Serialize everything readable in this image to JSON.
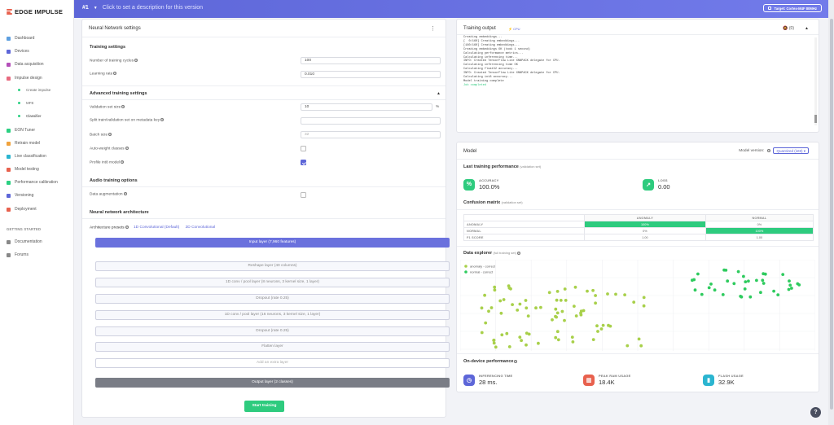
{
  "app": {
    "name": "EDGE IMPULSE"
  },
  "sidebar": {
    "items": [
      {
        "label": "Dashboard",
        "icon": "monitor-icon",
        "color": "#5d9fe0"
      },
      {
        "label": "Devices",
        "icon": "device-icon",
        "color": "#5d66d8"
      },
      {
        "label": "Data acquisition",
        "icon": "database-icon",
        "color": "#b44fb9"
      },
      {
        "label": "Impulse design",
        "icon": "impulse-icon",
        "color": "#e86a7f"
      }
    ],
    "sub": [
      {
        "label": "Create impulse"
      },
      {
        "label": "MFE"
      },
      {
        "label": "Classifier"
      }
    ],
    "items2": [
      {
        "label": "EON Tuner",
        "icon": "tuner-icon",
        "color": "#2bd082"
      },
      {
        "label": "Retrain model",
        "icon": "retrain-icon",
        "color": "#f0a23c"
      },
      {
        "label": "Live classification",
        "icon": "live-icon",
        "color": "#2bb5d0"
      },
      {
        "label": "Model testing",
        "icon": "test-icon",
        "color": "#e8614e"
      },
      {
        "label": "Performance calibration",
        "icon": "calibration-icon",
        "color": "#2bd082"
      },
      {
        "label": "Versioning",
        "icon": "versioning-icon",
        "color": "#5d66d8"
      },
      {
        "label": "Deployment",
        "icon": "deploy-icon",
        "color": "#e8614e"
      }
    ],
    "getting_started": "GETTING STARTED",
    "gs_items": [
      {
        "label": "Documentation",
        "icon": "book-icon"
      },
      {
        "label": "Forums",
        "icon": "forum-icon"
      }
    ]
  },
  "topbar": {
    "version": "#1",
    "description": "Click to set a description for this version",
    "target": "Target: Cortex-M4F 80MHz"
  },
  "nn": {
    "title": "Neural Network settings",
    "training_settings": "Training settings",
    "cycles_label": "Number of training cycles",
    "cycles": "100",
    "lr_label": "Learning rate",
    "lr": "0.010",
    "advanced": "Advanced training settings",
    "val_label": "Validation set size",
    "val": "10",
    "val_unit": "%",
    "split_label": "Split train/validation set on metadata key",
    "batch_label": "Batch size",
    "batch": "32",
    "autoweight_label": "Auto-weight classes",
    "profile_label": "Profile int8 model",
    "audio": "Audio training options",
    "aug_label": "Data augmentation",
    "arch": "Neural network architecture",
    "presets_label": "Architecture presets",
    "preset1": "1D Convolutional (Default)",
    "preset2": "2D Convolutional",
    "layers": [
      "Input layer (7,960 features)",
      "Reshape layer (40 columns)",
      "1D conv / pool layer (8 neurons, 3 kernel size, 1 layer)",
      "Dropout (rate 0.25)",
      "1D conv / pool layer (16 neurons, 3 kernel size, 1 layer)",
      "Dropout (rate 0.25)",
      "Flatten layer",
      "Add an extra layer",
      "Output layer (2 classes)"
    ],
    "start": "Start training"
  },
  "training_output": {
    "title": "Training output",
    "badge": "CPU",
    "count": "(0)",
    "lines": [
      "Creating embeddings...",
      "[  0/160] Creating embeddings...",
      "[160/160] Creating embeddings...",
      "Creating embeddings OK (took 1 second)",
      "",
      "Calculating performance metrics...",
      "Calculating inferencing time...",
      "INFO: Created TensorFlow Lite XNNPACK delegate for CPU.",
      "Calculating inferencing time OK",
      "Calculating float32 accuracy...",
      "INFO: Created TensorFlow Lite XNNPACK delegate for CPU.",
      "Calculating int8 accuracy...",
      "",
      "Model training complete",
      "",
      "Job completed"
    ]
  },
  "model": {
    "title": "Model",
    "version_label": "Model version:",
    "version_value": "Quantized (int8)",
    "last_perf": "Last training performance",
    "last_perf_note": "(validation set)",
    "accuracy_label": "ACCURACY",
    "accuracy": "100.0%",
    "loss_label": "LOSS",
    "loss": "0.00",
    "cm_title": "Confusion matrix",
    "cm_note": "(validation set)",
    "cm_cols": [
      "",
      "ANOMALY",
      "NORMAL"
    ],
    "cm_rows": [
      [
        "ANOMALY",
        "100%",
        "0%"
      ],
      [
        "NORMAL",
        "0%",
        "100%"
      ],
      [
        "F1 SCORE",
        "1.00",
        "1.00"
      ]
    ],
    "explorer_title": "Data explorer",
    "explorer_note": "(full training set)",
    "legend": [
      {
        "label": "anomaly - correct",
        "color": "#a8d04a"
      },
      {
        "label": "normal - correct",
        "color": "#2ecb5e"
      }
    ],
    "ondevice": "On-device performance",
    "inf_label": "INFERENCING TIME",
    "inf": "28 ms.",
    "ram_label": "PEAK RAM USAGE",
    "ram": "18.4K",
    "flash_label": "FLASH USAGE",
    "flash": "32.9K"
  }
}
